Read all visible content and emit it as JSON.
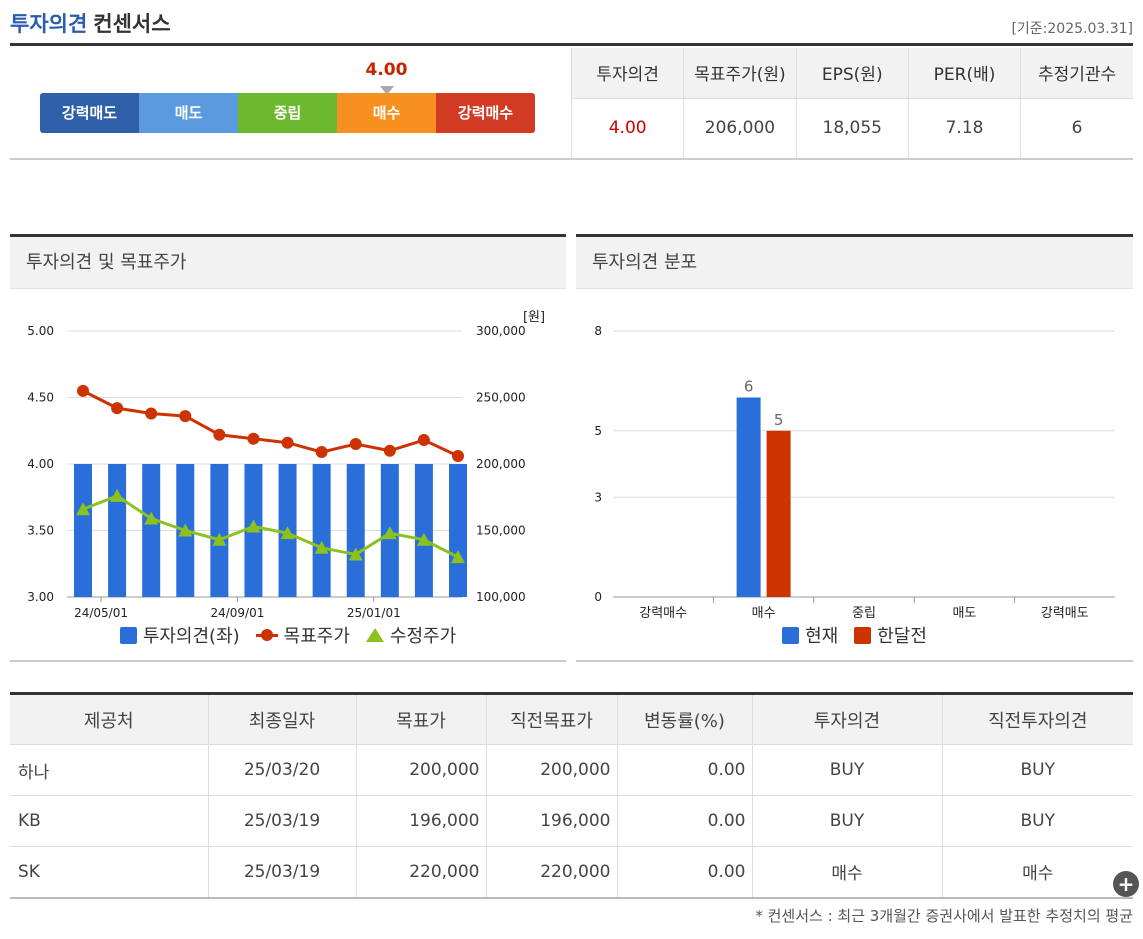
{
  "header": {
    "title_blue": "투자의견",
    "title_black": "컨센서스",
    "date": "[기준:2025.03.31]"
  },
  "gauge": {
    "value_label": "4.00",
    "value": 4.0,
    "segments": [
      {
        "label": "강력매도",
        "color": "#2e5fa8"
      },
      {
        "label": "매도",
        "color": "#5a9be0"
      },
      {
        "label": "중립",
        "color": "#6cb82e"
      },
      {
        "label": "매수",
        "color": "#f7901e"
      },
      {
        "label": "강력매수",
        "color": "#d23a24"
      }
    ]
  },
  "consensus": {
    "headers": [
      "투자의견",
      "목표주가(원)",
      "EPS(원)",
      "PER(배)",
      "추정기관수"
    ],
    "values": [
      "4.00",
      "206,000",
      "18,055",
      "7.18",
      "6"
    ]
  },
  "panel1": {
    "title": "투자의견 및 목표주가",
    "unit": "[원]"
  },
  "panel2": {
    "title": "투자의견 분포"
  },
  "chart_data": [
    {
      "type": "bar+line",
      "x": [
        "24/04",
        "24/05",
        "24/06",
        "24/07",
        "24/08",
        "24/09",
        "24/10",
        "24/11",
        "24/12",
        "25/01",
        "25/02",
        "25/03"
      ],
      "xtick_labels": [
        "24/05/01",
        "24/09/01",
        "25/01/01"
      ],
      "xtick_positions": [
        "24/05",
        "24/09",
        "25/01"
      ],
      "y_left": {
        "ticks": [
          "3.00",
          "3.50",
          "4.00",
          "4.50",
          "5.00"
        ],
        "ylim": [
          3.0,
          5.0
        ]
      },
      "y_right": {
        "ticks": [
          "100,000",
          "150,000",
          "200,000",
          "250,000",
          "300,000"
        ],
        "ylim": [
          100000,
          300000
        ]
      },
      "series": [
        {
          "name": "투자의견(좌)",
          "type": "bar",
          "axis": "left",
          "color": "#2a6fd9",
          "values": [
            4.0,
            4.0,
            4.0,
            4.0,
            4.0,
            4.0,
            4.0,
            4.0,
            4.0,
            4.0,
            4.0,
            4.0
          ]
        },
        {
          "name": "목표주가",
          "type": "line",
          "axis": "right",
          "color": "#cc3300",
          "marker": "circle",
          "values": [
            255000,
            242000,
            238000,
            236000,
            222000,
            219000,
            216000,
            209000,
            215000,
            210000,
            218000,
            206000
          ]
        },
        {
          "name": "수정주가",
          "type": "line",
          "axis": "right",
          "color": "#8cc21f",
          "marker": "triangle",
          "values": [
            166000,
            176000,
            159000,
            150000,
            143000,
            153000,
            148000,
            137000,
            132000,
            148000,
            143000,
            130000
          ]
        }
      ],
      "legend": "bottom"
    },
    {
      "type": "bar",
      "categories": [
        "강력매수",
        "매수",
        "중립",
        "매도",
        "강력매도"
      ],
      "y_ticks": [
        "0",
        "3",
        "5",
        "8"
      ],
      "ylim": [
        0,
        8
      ],
      "series": [
        {
          "name": "현재",
          "color": "#2a6fd9",
          "values": [
            0,
            6,
            0,
            0,
            0
          ],
          "labels": [
            "",
            "6",
            "",
            "",
            ""
          ]
        },
        {
          "name": "한달전",
          "color": "#cc3300",
          "values": [
            0,
            5,
            0,
            0,
            0
          ],
          "labels": [
            "",
            "5",
            "",
            "",
            ""
          ]
        }
      ],
      "legend": "bottom"
    }
  ],
  "table": {
    "headers": [
      "제공처",
      "최종일자",
      "목표가",
      "직전목표가",
      "변동률(%)",
      "투자의견",
      "직전투자의견"
    ],
    "rows": [
      [
        "하나",
        "25/03/20",
        "200,000",
        "200,000",
        "0.00",
        "BUY",
        "BUY"
      ],
      [
        "KB",
        "25/03/19",
        "196,000",
        "196,000",
        "0.00",
        "BUY",
        "BUY"
      ],
      [
        "SK",
        "25/03/19",
        "220,000",
        "220,000",
        "0.00",
        "매수",
        "매수"
      ]
    ]
  },
  "footnote": "* 컨센서스 : 최근 3개월간 증권사에서 발표한 추정치의 평균",
  "plus_icon": "+"
}
